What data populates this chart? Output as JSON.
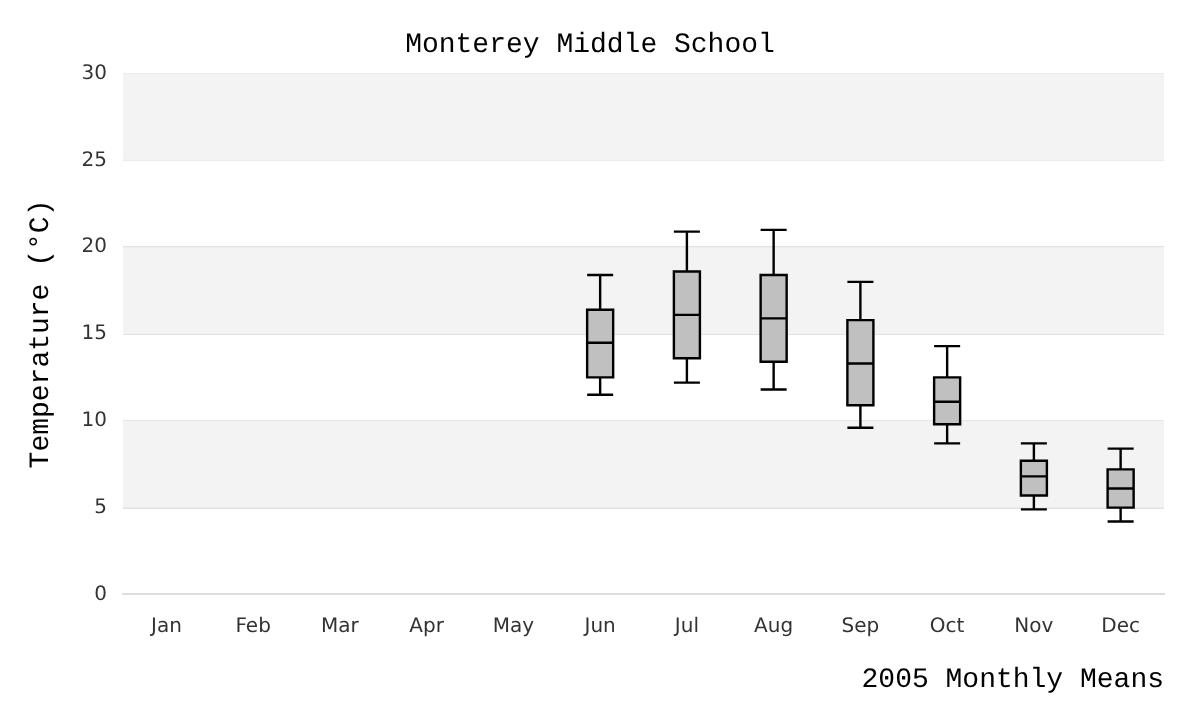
{
  "chart_data": {
    "type": "box",
    "title": "Monterey Middle School",
    "xlabel": "2005 Monthly Means",
    "ylabel": "Temperature (°C)",
    "categories": [
      "Jan",
      "Feb",
      "Mar",
      "Apr",
      "May",
      "Jun",
      "Jul",
      "Aug",
      "Sep",
      "Oct",
      "Nov",
      "Dec"
    ],
    "series": [
      {
        "color": "#c0c0c0",
        "boxes": [
          null,
          null,
          null,
          null,
          null,
          {
            "low": 11.5,
            "q1": 12.5,
            "median": 14.5,
            "q3": 16.4,
            "high": 18.4
          },
          {
            "low": 12.2,
            "q1": 13.6,
            "median": 16.1,
            "q3": 18.6,
            "high": 20.9
          },
          {
            "low": 11.8,
            "q1": 13.4,
            "median": 15.9,
            "q3": 18.4,
            "high": 21.0
          },
          {
            "low": 9.6,
            "q1": 10.9,
            "median": 13.3,
            "q3": 15.8,
            "high": 18.0
          },
          {
            "low": 8.7,
            "q1": 9.8,
            "median": 11.1,
            "q3": 12.5,
            "high": 14.3
          },
          {
            "low": 4.9,
            "q1": 5.7,
            "median": 6.8,
            "q3": 7.7,
            "high": 8.7
          },
          {
            "low": 4.2,
            "q1": 5.0,
            "median": 6.1,
            "q3": 7.2,
            "high": 8.4
          }
        ]
      }
    ],
    "ylim": [
      0,
      30
    ],
    "yticks": [
      0,
      5,
      10,
      15,
      20,
      25,
      30
    ],
    "grid": "y",
    "legend": false
  }
}
